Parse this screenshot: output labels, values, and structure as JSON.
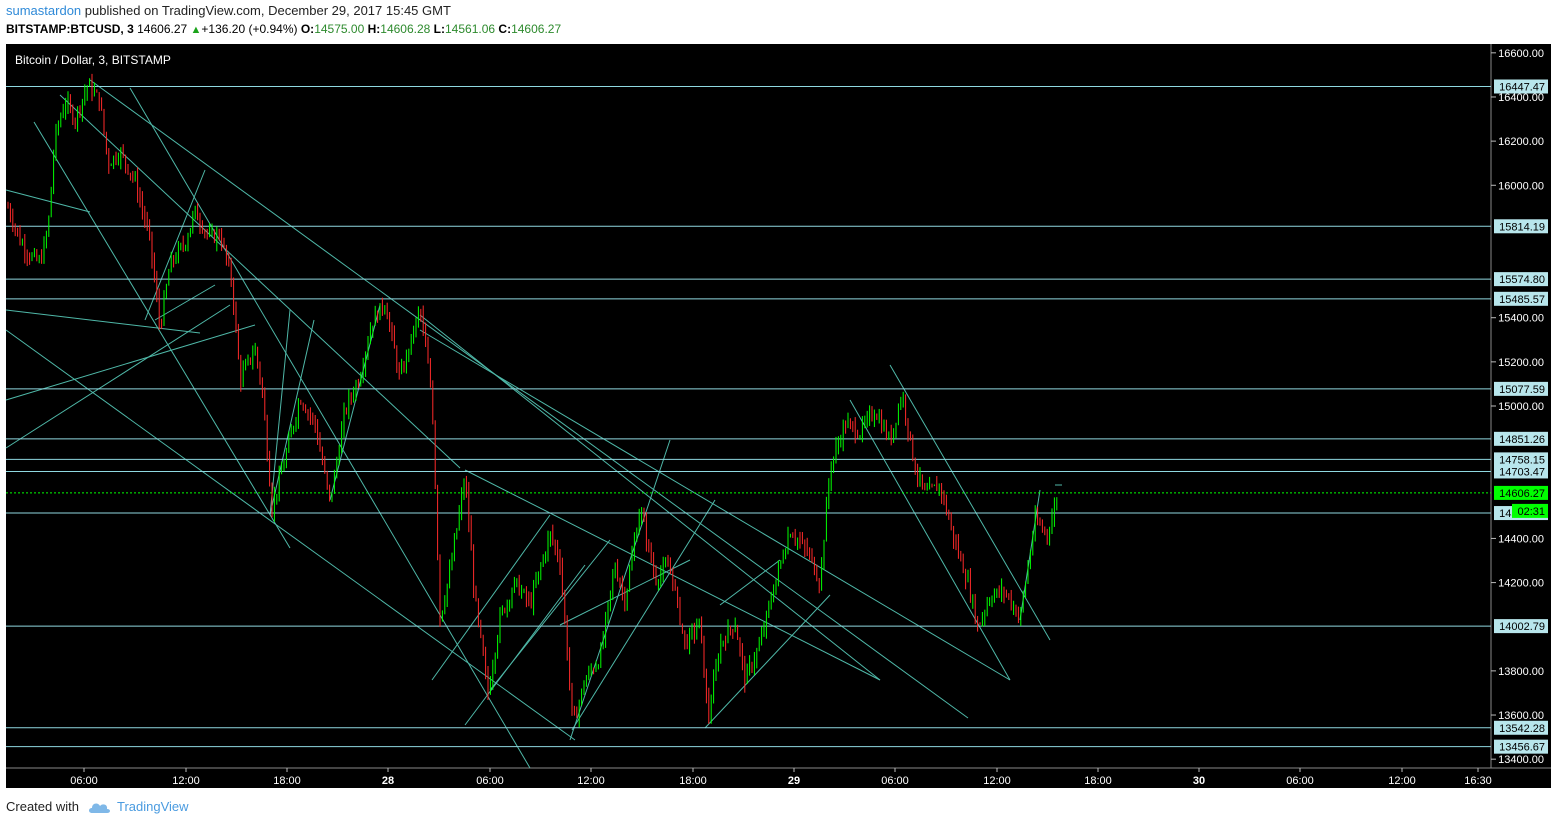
{
  "header": {
    "publisher": "sumastardon",
    "published_text": " published on TradingView.com, December 29, 2017 15:45 GMT",
    "symbol": "BITSTAMP:BTCUSD, 3",
    "last": "14606.27",
    "change": "+136.20 (+0.94%)",
    "o_label": "O:",
    "o_value": "14575.00",
    "h_label": "H:",
    "h_value": "14606.28",
    "l_label": "L:",
    "l_value": "14561.06",
    "c_label": "C:",
    "c_value": "14606.27"
  },
  "footer": {
    "created_with": "Created with",
    "brand": "TradingView"
  },
  "chart_data": {
    "type": "candlestick",
    "title": "Bitcoin / Dollar, 3, BITSTAMP",
    "ylim": [
      13360,
      16640
    ],
    "price_ticks": [
      "16600.00",
      "16400.00",
      "16200.00",
      "16000.00",
      "15400.00",
      "15200.00",
      "15000.00",
      "14400.00",
      "14200.00",
      "13800.00",
      "13600.00",
      "13400.00"
    ],
    "x_ticks": [
      "06:00",
      "12:00",
      "18:00",
      "28",
      "06:00",
      "12:00",
      "18:00",
      "29",
      "06:00",
      "12:00",
      "18:00",
      "30",
      "06:00",
      "12:00",
      "16:30"
    ],
    "level_labels": [
      "16447.47",
      "15814.19",
      "15574.80",
      "15485.57",
      "15077.59",
      "14851.26",
      "14758.15",
      "14703.47",
      "14606.27",
      "14515.00",
      "14002.79",
      "13542.28",
      "13456.67"
    ],
    "current_price_label": "14606.27",
    "countdown_label": "02:31",
    "colors": {
      "background": "#000000",
      "up": "#00ff00",
      "down": "#ff2a2a",
      "horizontal_level": "#8fd8e0",
      "trend_line": "#4fb8a8",
      "current_price": "#00ff00"
    },
    "horizontal_levels": [
      16447.47,
      15814.19,
      15574.8,
      15485.57,
      15077.59,
      14851.26,
      14758.15,
      14703.47,
      14515.0,
      14002.79,
      13542.28,
      13456.67
    ]
  }
}
